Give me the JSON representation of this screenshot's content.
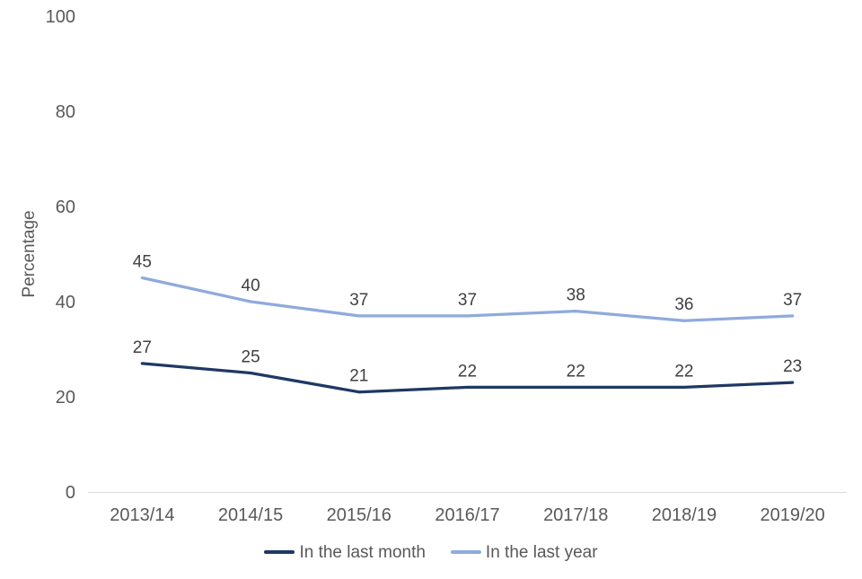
{
  "chart_data": {
    "type": "line",
    "title": "",
    "xlabel": "",
    "ylabel": "Percentage",
    "categories": [
      "2013/14",
      "2014/15",
      "2015/16",
      "2016/17",
      "2017/18",
      "2018/19",
      "2019/20"
    ],
    "series": [
      {
        "name": "In the last month",
        "color": "#1f3864",
        "values": [
          27,
          25,
          21,
          22,
          22,
          22,
          23
        ]
      },
      {
        "name": "In the last year",
        "color": "#8faadc",
        "values": [
          45,
          40,
          37,
          37,
          38,
          36,
          37
        ]
      }
    ],
    "ylim": [
      0,
      100
    ],
    "yticks": [
      0,
      20,
      40,
      60,
      80,
      100
    ],
    "grid": false,
    "data_labels": true,
    "legend_position": "bottom"
  },
  "colors": {
    "axis_line": "#d9d9d9",
    "tick_text": "#595959",
    "data_label_text": "#404040"
  }
}
